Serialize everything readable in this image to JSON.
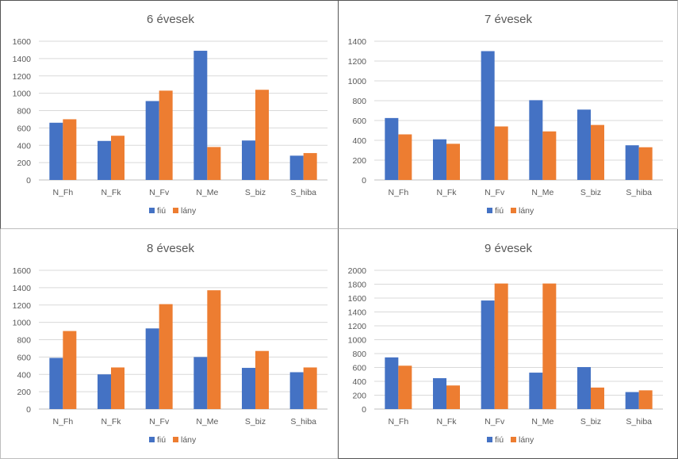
{
  "chart_data": [
    {
      "type": "bar",
      "title": "6 évesek",
      "categories": [
        "N_Fh",
        "N_Fk",
        "N_Fv",
        "N_Me",
        "S_biz",
        "S_hiba"
      ],
      "series": [
        {
          "name": "fiú",
          "values": [
            660,
            450,
            910,
            1490,
            455,
            280
          ]
        },
        {
          "name": "lány",
          "values": [
            700,
            510,
            1030,
            380,
            1040,
            310
          ]
        }
      ],
      "ylim": [
        0,
        1600
      ],
      "ystep": 200,
      "colors": [
        "#4472C4",
        "#ED7D31"
      ],
      "grid": true,
      "legend": "bottom"
    },
    {
      "type": "bar",
      "title": "7 évesek",
      "categories": [
        "N_Fh",
        "N_Fk",
        "N_Fv",
        "N_Me",
        "S_biz",
        "S_hiba"
      ],
      "series": [
        {
          "name": "fiú",
          "values": [
            625,
            410,
            1300,
            805,
            710,
            350
          ]
        },
        {
          "name": "lány",
          "values": [
            460,
            365,
            540,
            490,
            555,
            330
          ]
        }
      ],
      "ylim": [
        0,
        1400
      ],
      "ystep": 200,
      "colors": [
        "#4472C4",
        "#ED7D31"
      ],
      "grid": true,
      "legend": "bottom"
    },
    {
      "type": "bar",
      "title": "8 évesek",
      "categories": [
        "N_Fh",
        "N_Fk",
        "N_Fv",
        "N_Me",
        "S_biz",
        "S_hiba"
      ],
      "series": [
        {
          "name": "fiú",
          "values": [
            590,
            400,
            930,
            600,
            475,
            425
          ]
        },
        {
          "name": "lány",
          "values": [
            900,
            480,
            1210,
            1370,
            670,
            480
          ]
        }
      ],
      "ylim": [
        0,
        1600
      ],
      "ystep": 200,
      "colors": [
        "#4472C4",
        "#ED7D31"
      ],
      "grid": true,
      "legend": "bottom"
    },
    {
      "type": "bar",
      "title": "9 évesek",
      "categories": [
        "N_Fh",
        "N_Fk",
        "N_Fv",
        "N_Me",
        "S_biz",
        "S_hiba"
      ],
      "series": [
        {
          "name": "fiú",
          "values": [
            745,
            445,
            1565,
            525,
            605,
            245
          ]
        },
        {
          "name": "lány",
          "values": [
            625,
            340,
            1810,
            1810,
            310,
            270
          ]
        }
      ],
      "ylim": [
        0,
        2000
      ],
      "ystep": 200,
      "colors": [
        "#4472C4",
        "#ED7D31"
      ],
      "grid": true,
      "legend": "bottom"
    }
  ]
}
